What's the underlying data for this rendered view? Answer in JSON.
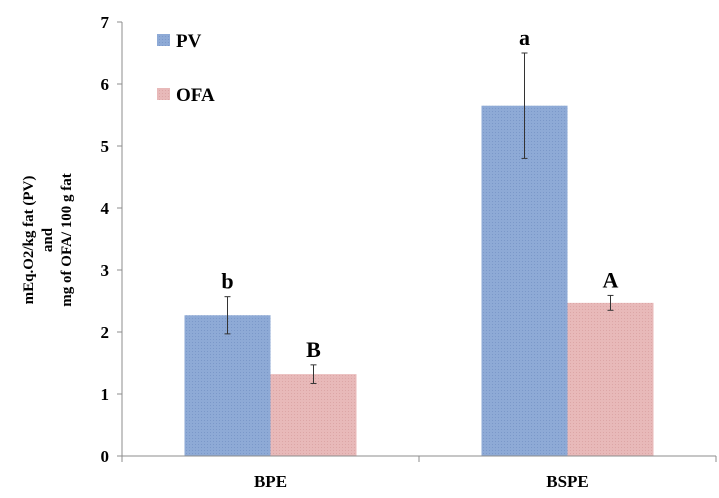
{
  "chart_data": {
    "type": "bar",
    "categories": [
      "BPE",
      "BSPE"
    ],
    "series": [
      {
        "name": "PV",
        "values": [
          2.27,
          5.65
        ],
        "errors": [
          0.3,
          0.85
        ],
        "significance": [
          "b",
          "a"
        ],
        "color": "#8eaad6"
      },
      {
        "name": "OFA",
        "values": [
          1.32,
          2.47
        ],
        "errors": [
          0.15,
          0.12
        ],
        "significance": [
          "B",
          "A"
        ],
        "color": "#e6b3b3"
      }
    ],
    "ylabel_lines": [
      "mEq.O2/kg fat (PV)",
      "and",
      "mg of OFA/ 100 g fat"
    ],
    "ylim": [
      0,
      7
    ],
    "yticks": [
      "0",
      "1",
      "2",
      "3",
      "4",
      "5",
      "6",
      "7"
    ],
    "grid": false,
    "legend_position": "top-left"
  }
}
